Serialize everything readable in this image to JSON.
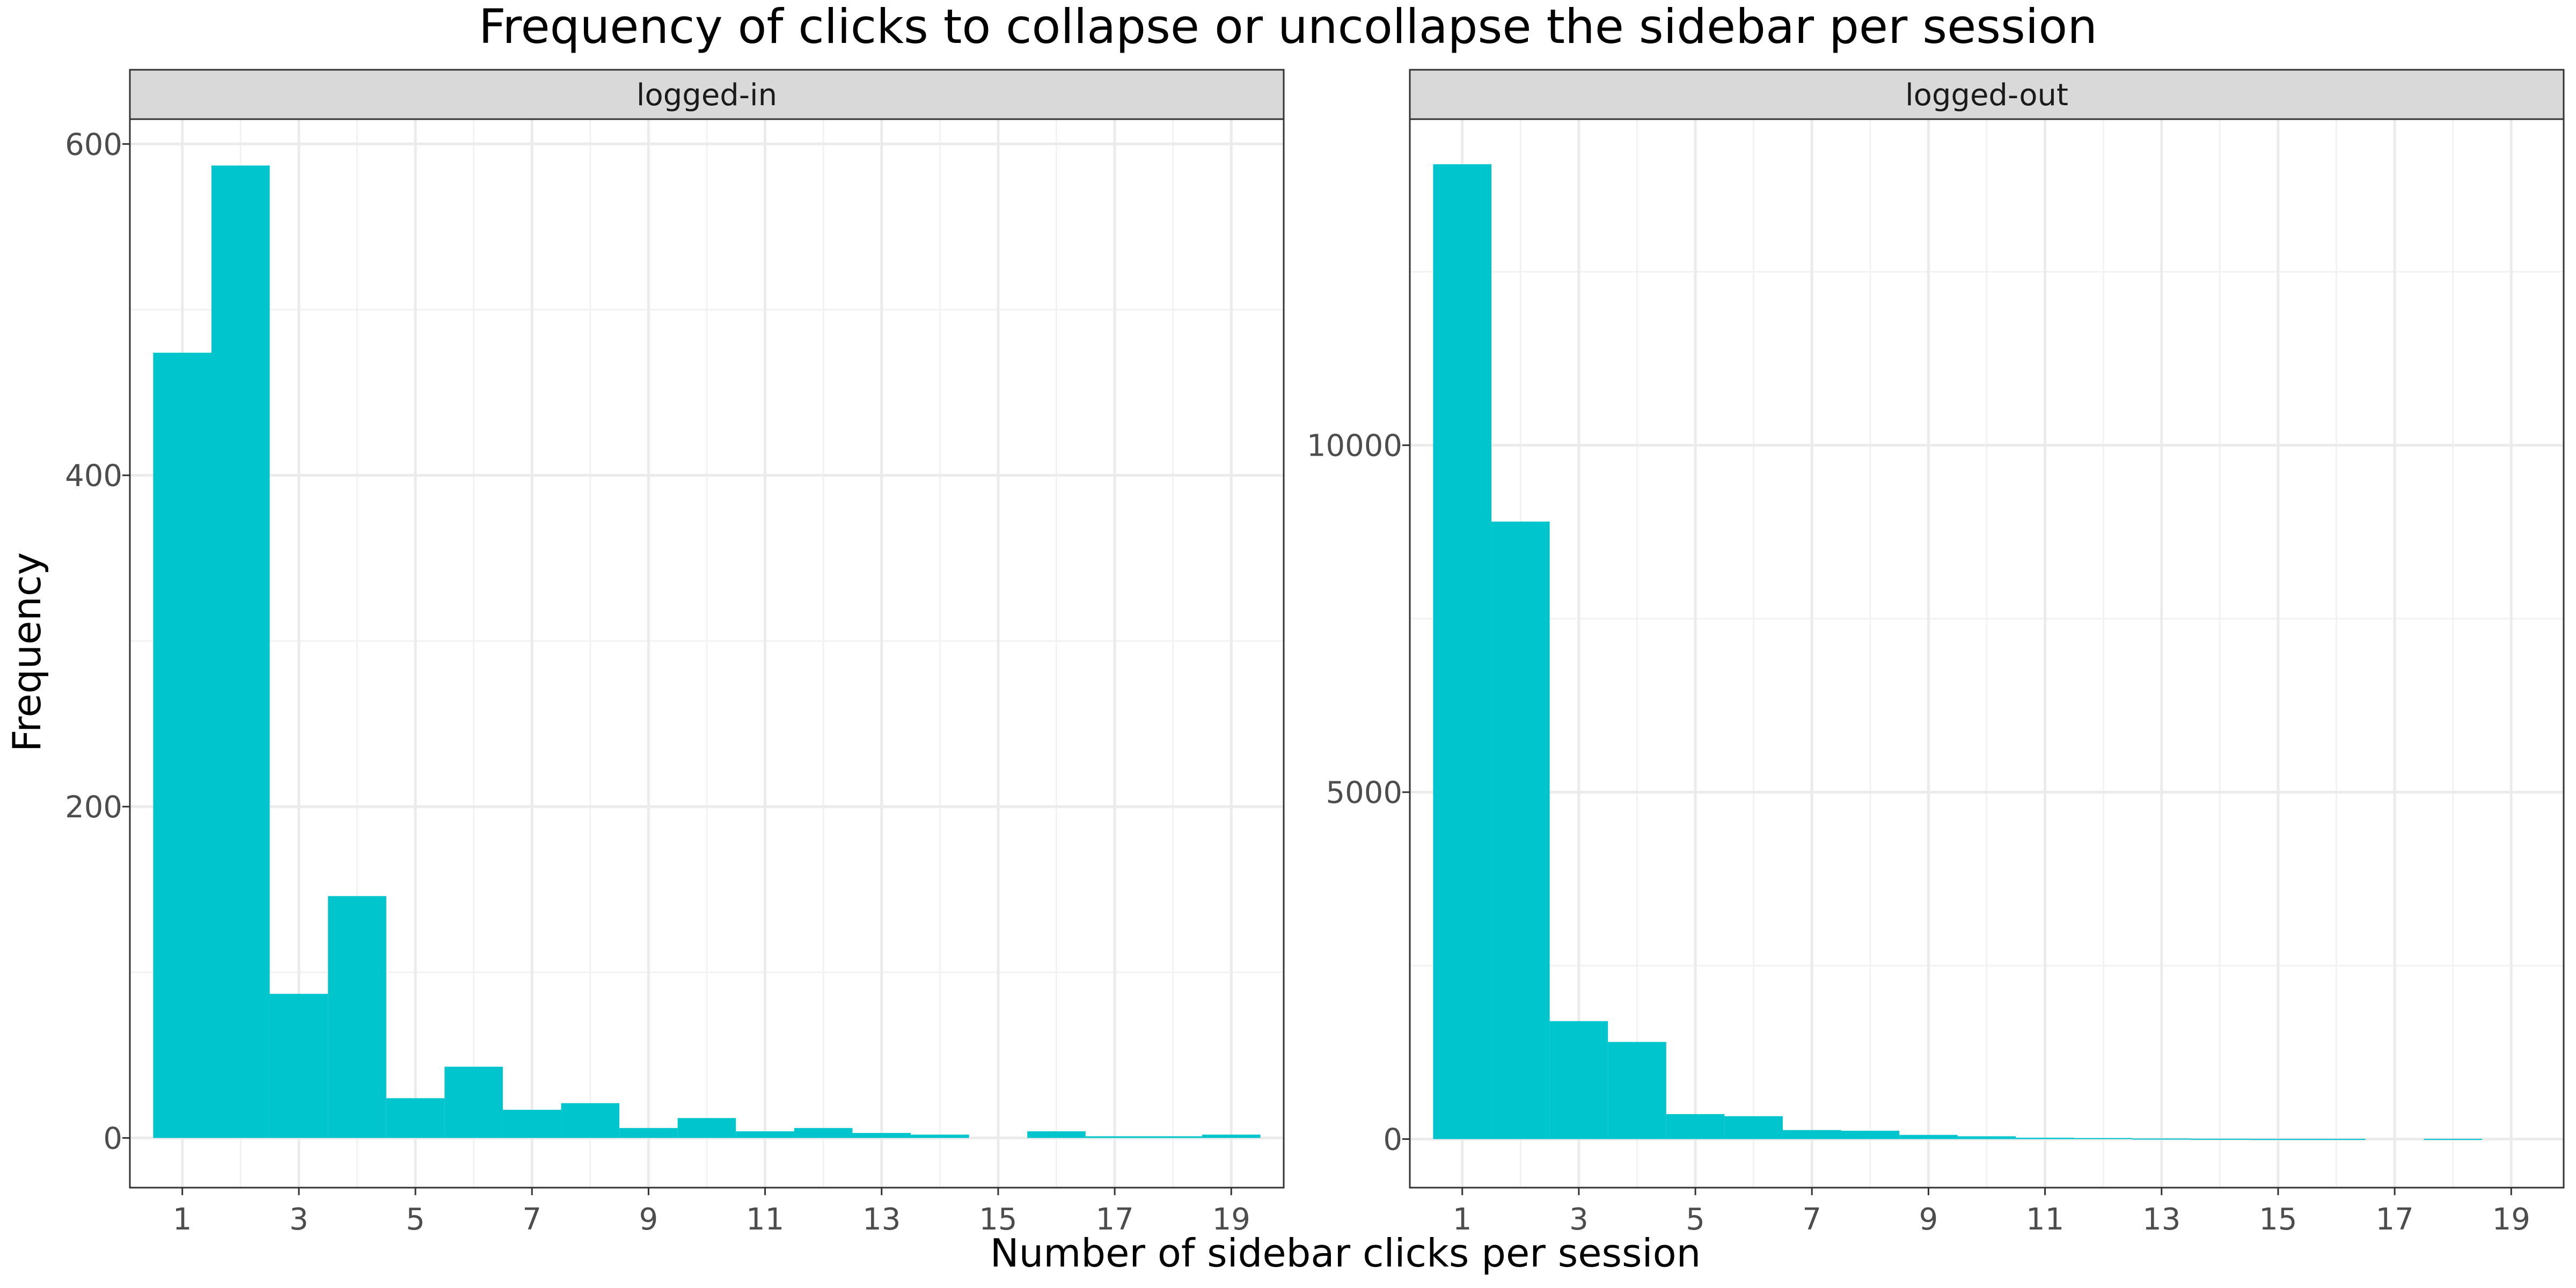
{
  "chart_data": {
    "type": "bar",
    "title": "Frequency of clicks to collapse or uncollapse the sidebar per session",
    "xlabel": "Number of sidebar clicks per session",
    "ylabel": "Frequency",
    "bar_color": "#00C5CD",
    "grid": true,
    "x_ticks": [
      "1",
      "3",
      "5",
      "7",
      "9",
      "11",
      "13",
      "15",
      "17",
      "19"
    ],
    "x_tick_values": [
      1,
      3,
      5,
      7,
      9,
      11,
      13,
      15,
      17,
      19
    ],
    "xlim": [
      0.1,
      19.9
    ],
    "panels": [
      {
        "strip": "logged-in",
        "ylim": [
          -30,
          615
        ],
        "y_ticks": [
          "0",
          "200",
          "400",
          "600"
        ],
        "y_tick_values": [
          0,
          200,
          400,
          600
        ],
        "x": [
          1,
          2,
          3,
          4,
          5,
          6,
          7,
          8,
          9,
          10,
          11,
          12,
          13,
          14,
          16,
          17,
          18,
          19
        ],
        "values": [
          474,
          587,
          87,
          146,
          24,
          43,
          17,
          21,
          6,
          12,
          4,
          6,
          3,
          2,
          4,
          1,
          1,
          2
        ]
      },
      {
        "strip": "logged-out",
        "ylim": [
          -700,
          14700
        ],
        "y_ticks": [
          "0",
          "5000",
          "10000"
        ],
        "y_tick_values": [
          0,
          5000,
          10000
        ],
        "x": [
          1,
          2,
          3,
          4,
          5,
          6,
          7,
          8,
          9,
          10,
          11,
          12,
          13,
          14,
          15,
          16,
          18
        ],
        "values": [
          14050,
          8900,
          1700,
          1400,
          360,
          330,
          130,
          120,
          60,
          40,
          20,
          15,
          8,
          5,
          3,
          3,
          3
        ]
      }
    ]
  }
}
